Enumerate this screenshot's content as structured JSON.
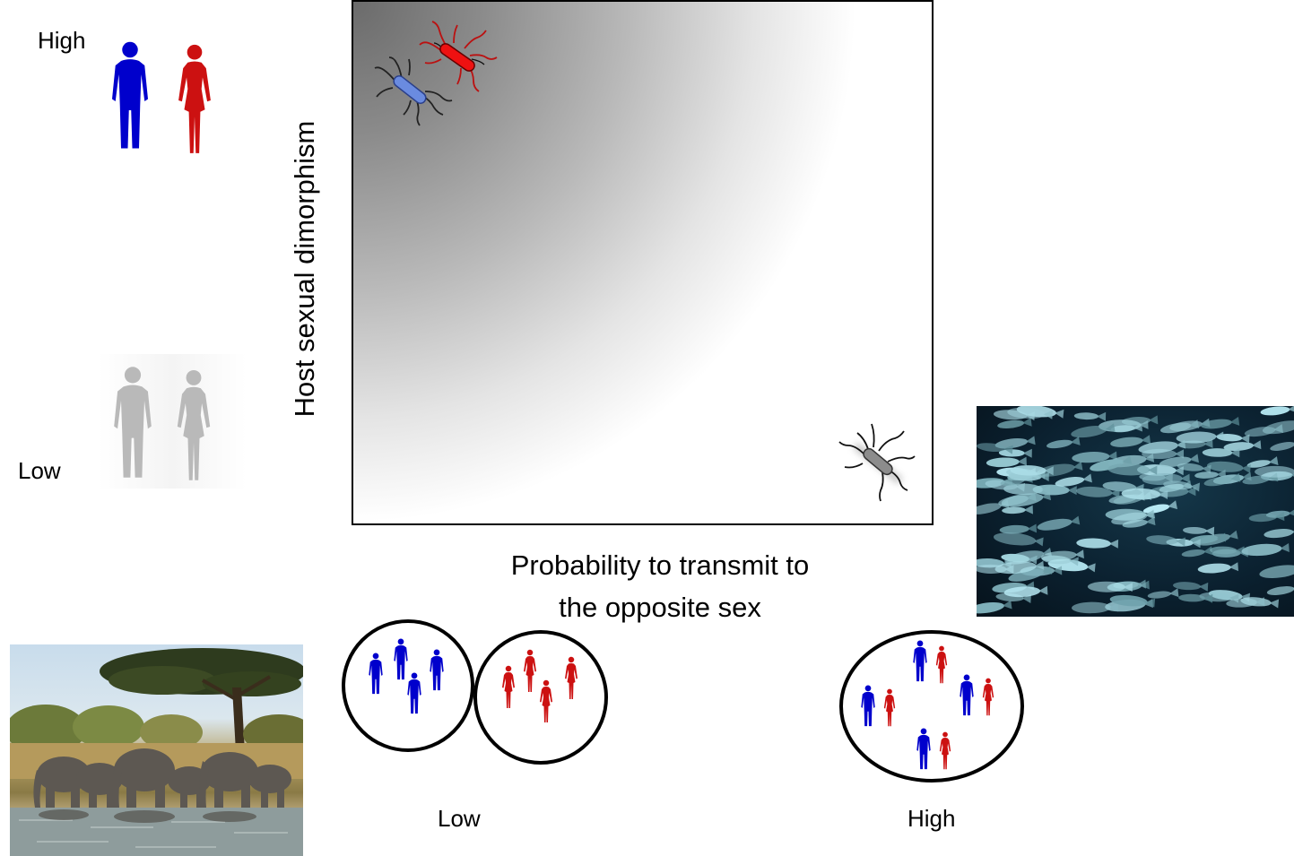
{
  "y_axis": {
    "label": "Host sexual dimorphism",
    "high_label": "High",
    "low_label": "Low"
  },
  "x_axis": {
    "label_line1": "Probability to transmit to",
    "label_line2": "the opposite sex",
    "low_label": "Low",
    "high_label": "High"
  },
  "colors": {
    "male": "#0000cc",
    "female": "#cc1111",
    "neutral": "#b9b9b9",
    "bacterium_male": "#6a8be0",
    "bacterium_female": "#ee1111",
    "bacterium_neutral": "#8c8c8c"
  },
  "icons": {
    "high_dimorphism": "male-female-silhouettes-icon",
    "low_dimorphism": "grey-human-silhouettes-icon",
    "bacteria": "bacterium-icon",
    "elephants": "elephant-herd-photo",
    "fish": "fish-school-photo"
  }
}
